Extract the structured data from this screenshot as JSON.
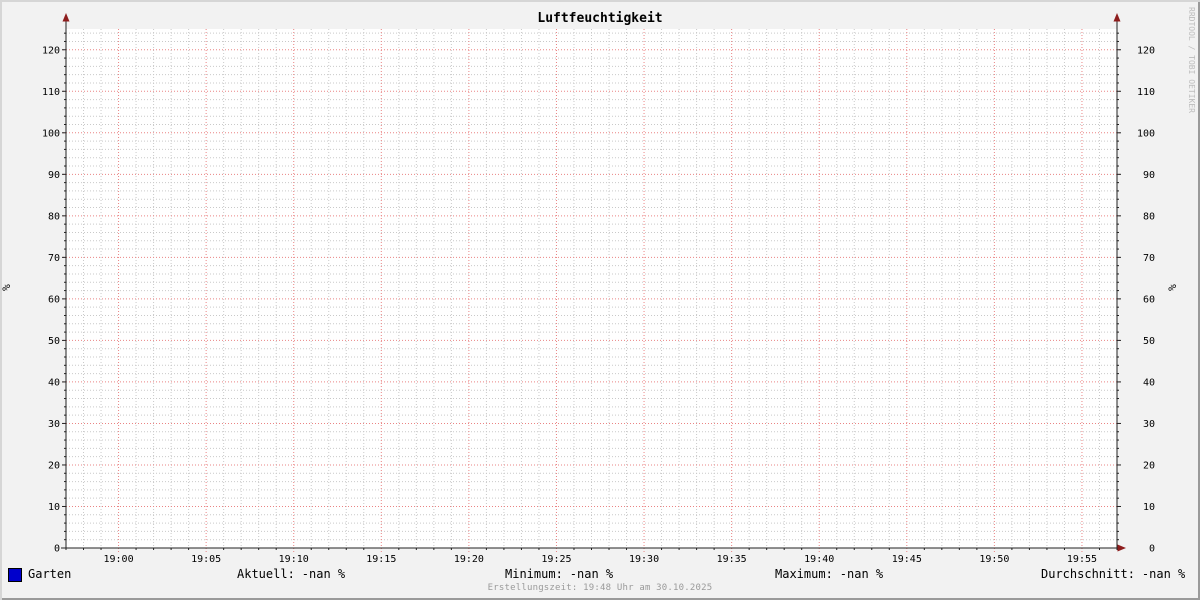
{
  "page": {
    "title": "Luftfeuchtigkeit"
  },
  "chart_data": {
    "type": "line",
    "title": "Luftfeuchtigkeit",
    "ylabel_left": "%",
    "ylabel_right": "%",
    "ylim": [
      0,
      125
    ],
    "y_major_step": 10,
    "y_minor_step": 2,
    "y_ticks": [
      0,
      10,
      20,
      30,
      40,
      50,
      60,
      70,
      80,
      90,
      100,
      110,
      120
    ],
    "x_range_minutes": [
      -3,
      57
    ],
    "x_minor_step_min": 1,
    "x_tick_minutes": [
      0,
      5,
      10,
      15,
      20,
      25,
      30,
      35,
      40,
      45,
      50,
      55
    ],
    "x_tick_labels": [
      "19:00",
      "19:05",
      "19:10",
      "19:15",
      "19:20",
      "19:25",
      "19:30",
      "19:35",
      "19:40",
      "19:45",
      "19:50",
      "19:55"
    ],
    "grid": true,
    "legend_position": "bottom",
    "series": [
      {
        "name": "Garten",
        "color": "#0000cc",
        "values": []
      }
    ]
  },
  "legend": {
    "series_label": "Garten",
    "stats": [
      {
        "label": "Aktuell:",
        "value": "-nan %"
      },
      {
        "label": "Minimum:",
        "value": "-nan %"
      },
      {
        "label": "Maximum:",
        "value": "-nan %"
      },
      {
        "label": "Durchschnitt:",
        "value": "-nan %"
      }
    ]
  },
  "footer": {
    "creation_text": "Erstellungszeit: 19:48 Uhr am 30.10.2025"
  },
  "watermark": "RRDTOOL / TOBI OETIKER",
  "colors": {
    "background": "#f2f2f2",
    "canvas": "#ffffff",
    "grid_minor": "#c9c9c9",
    "grid_major": "#ea8484",
    "axis": "#222222",
    "arrow": "#8d1d1d",
    "text": "#000000",
    "muted_text": "#9a9a9a",
    "watermark_text": "#bdbdbd",
    "shade_top_left": "#d6d6d6",
    "shade_bottom_right": "#9a9a9a",
    "series_garten": "#0000cc"
  }
}
